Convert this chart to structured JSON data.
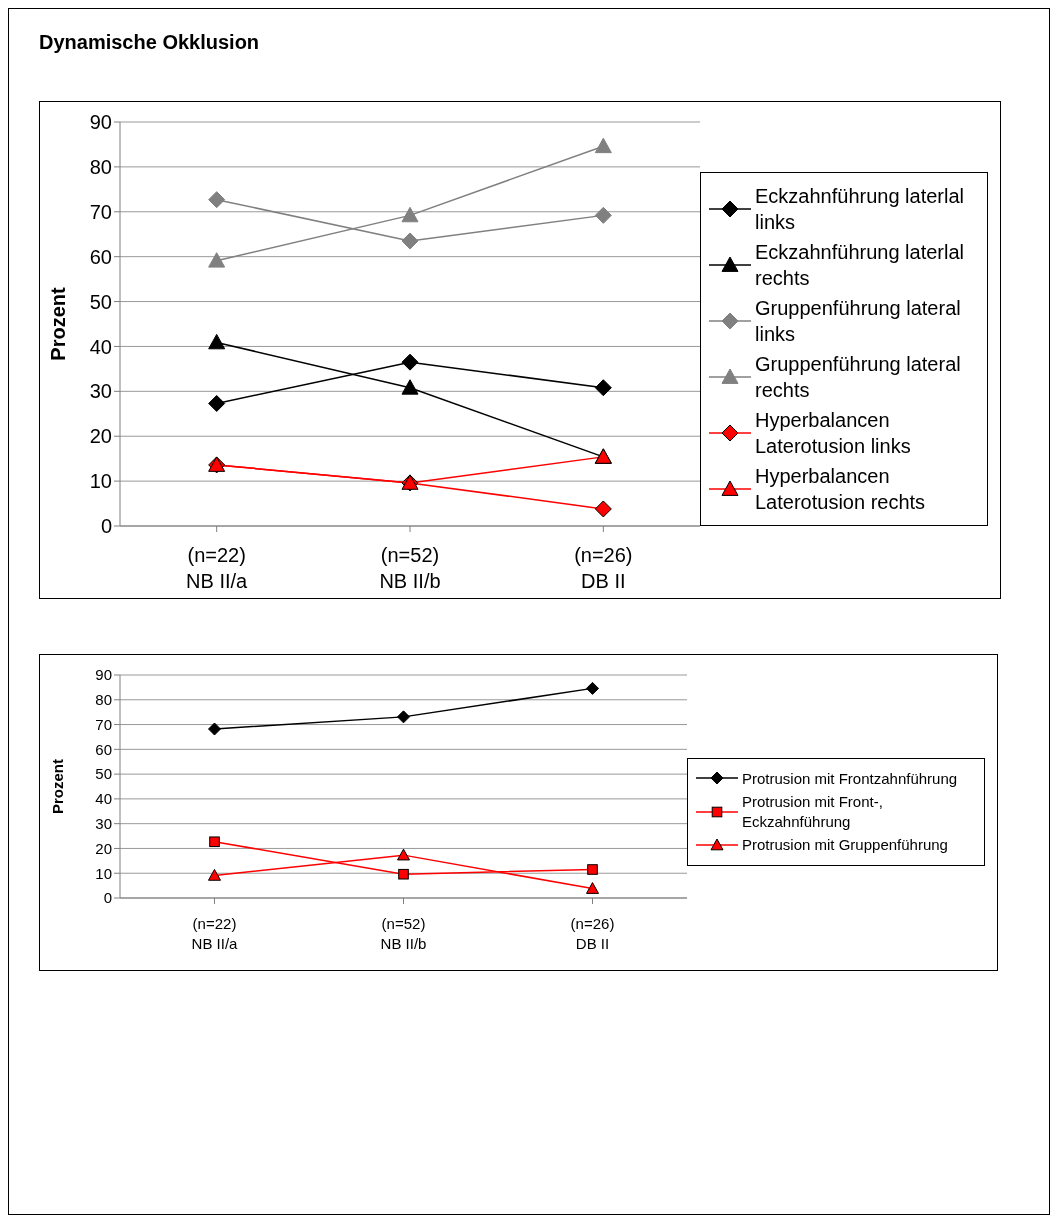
{
  "chart_data": [
    {
      "type": "line",
      "title": "Dynamische Okklusion",
      "ylabel": "Prozent",
      "categories": [
        "(n=22)\nNB II/a",
        "(n=52)\nNB II/b",
        "(n=26)\nDB II"
      ],
      "ylim": [
        0,
        90
      ],
      "yticks": [
        0,
        10,
        20,
        30,
        40,
        50,
        60,
        70,
        80,
        90
      ],
      "grid": "y",
      "legend": "right",
      "series": [
        {
          "name": "Eckzahnführung laterlal links",
          "color": "#000000",
          "marker": "diamond",
          "values": [
            27.3,
            36.5,
            30.8
          ]
        },
        {
          "name": "Eckzahnführung laterlal rechts",
          "color": "#000000",
          "marker": "triangle",
          "values": [
            40.9,
            30.8,
            15.4
          ]
        },
        {
          "name": "Gruppenführung lateral links",
          "color": "#808080",
          "marker": "diamond",
          "values": [
            72.7,
            63.5,
            69.2
          ]
        },
        {
          "name": "Gruppenführung lateral rechts",
          "color": "#808080",
          "marker": "triangle",
          "values": [
            59.1,
            69.2,
            84.6
          ]
        },
        {
          "name": "Hyperbalancen Laterotusion links",
          "color": "#ff0000",
          "marker": "diamond",
          "values": [
            13.6,
            9.6,
            3.8
          ]
        },
        {
          "name": "Hyperbalancen Laterotusion rechts",
          "color": "#ff0000",
          "marker": "triangle",
          "values": [
            13.6,
            9.6,
            15.4
          ]
        }
      ]
    },
    {
      "type": "line",
      "ylabel": "Prozent",
      "categories": [
        "(n=22)\nNB II/a",
        "(n=52)\nNB II/b",
        "(n=26)\nDB II"
      ],
      "ylim": [
        0,
        90
      ],
      "yticks": [
        0,
        10,
        20,
        30,
        40,
        50,
        60,
        70,
        80,
        90
      ],
      "grid": "y",
      "legend": "right",
      "series": [
        {
          "name": "Protrusion mit Frontzahnführung",
          "color": "#000000",
          "marker": "diamond",
          "values": [
            68.2,
            73.1,
            84.6
          ]
        },
        {
          "name": "Protrusion mit Front-, Eckzahnführung",
          "color": "#ff0000",
          "marker": "square",
          "values": [
            22.7,
            9.6,
            11.5
          ]
        },
        {
          "name": "Protrusion mit Gruppenführung",
          "color": "#ff0000",
          "marker": "triangle",
          "values": [
            9.1,
            17.3,
            3.8
          ]
        }
      ]
    }
  ]
}
